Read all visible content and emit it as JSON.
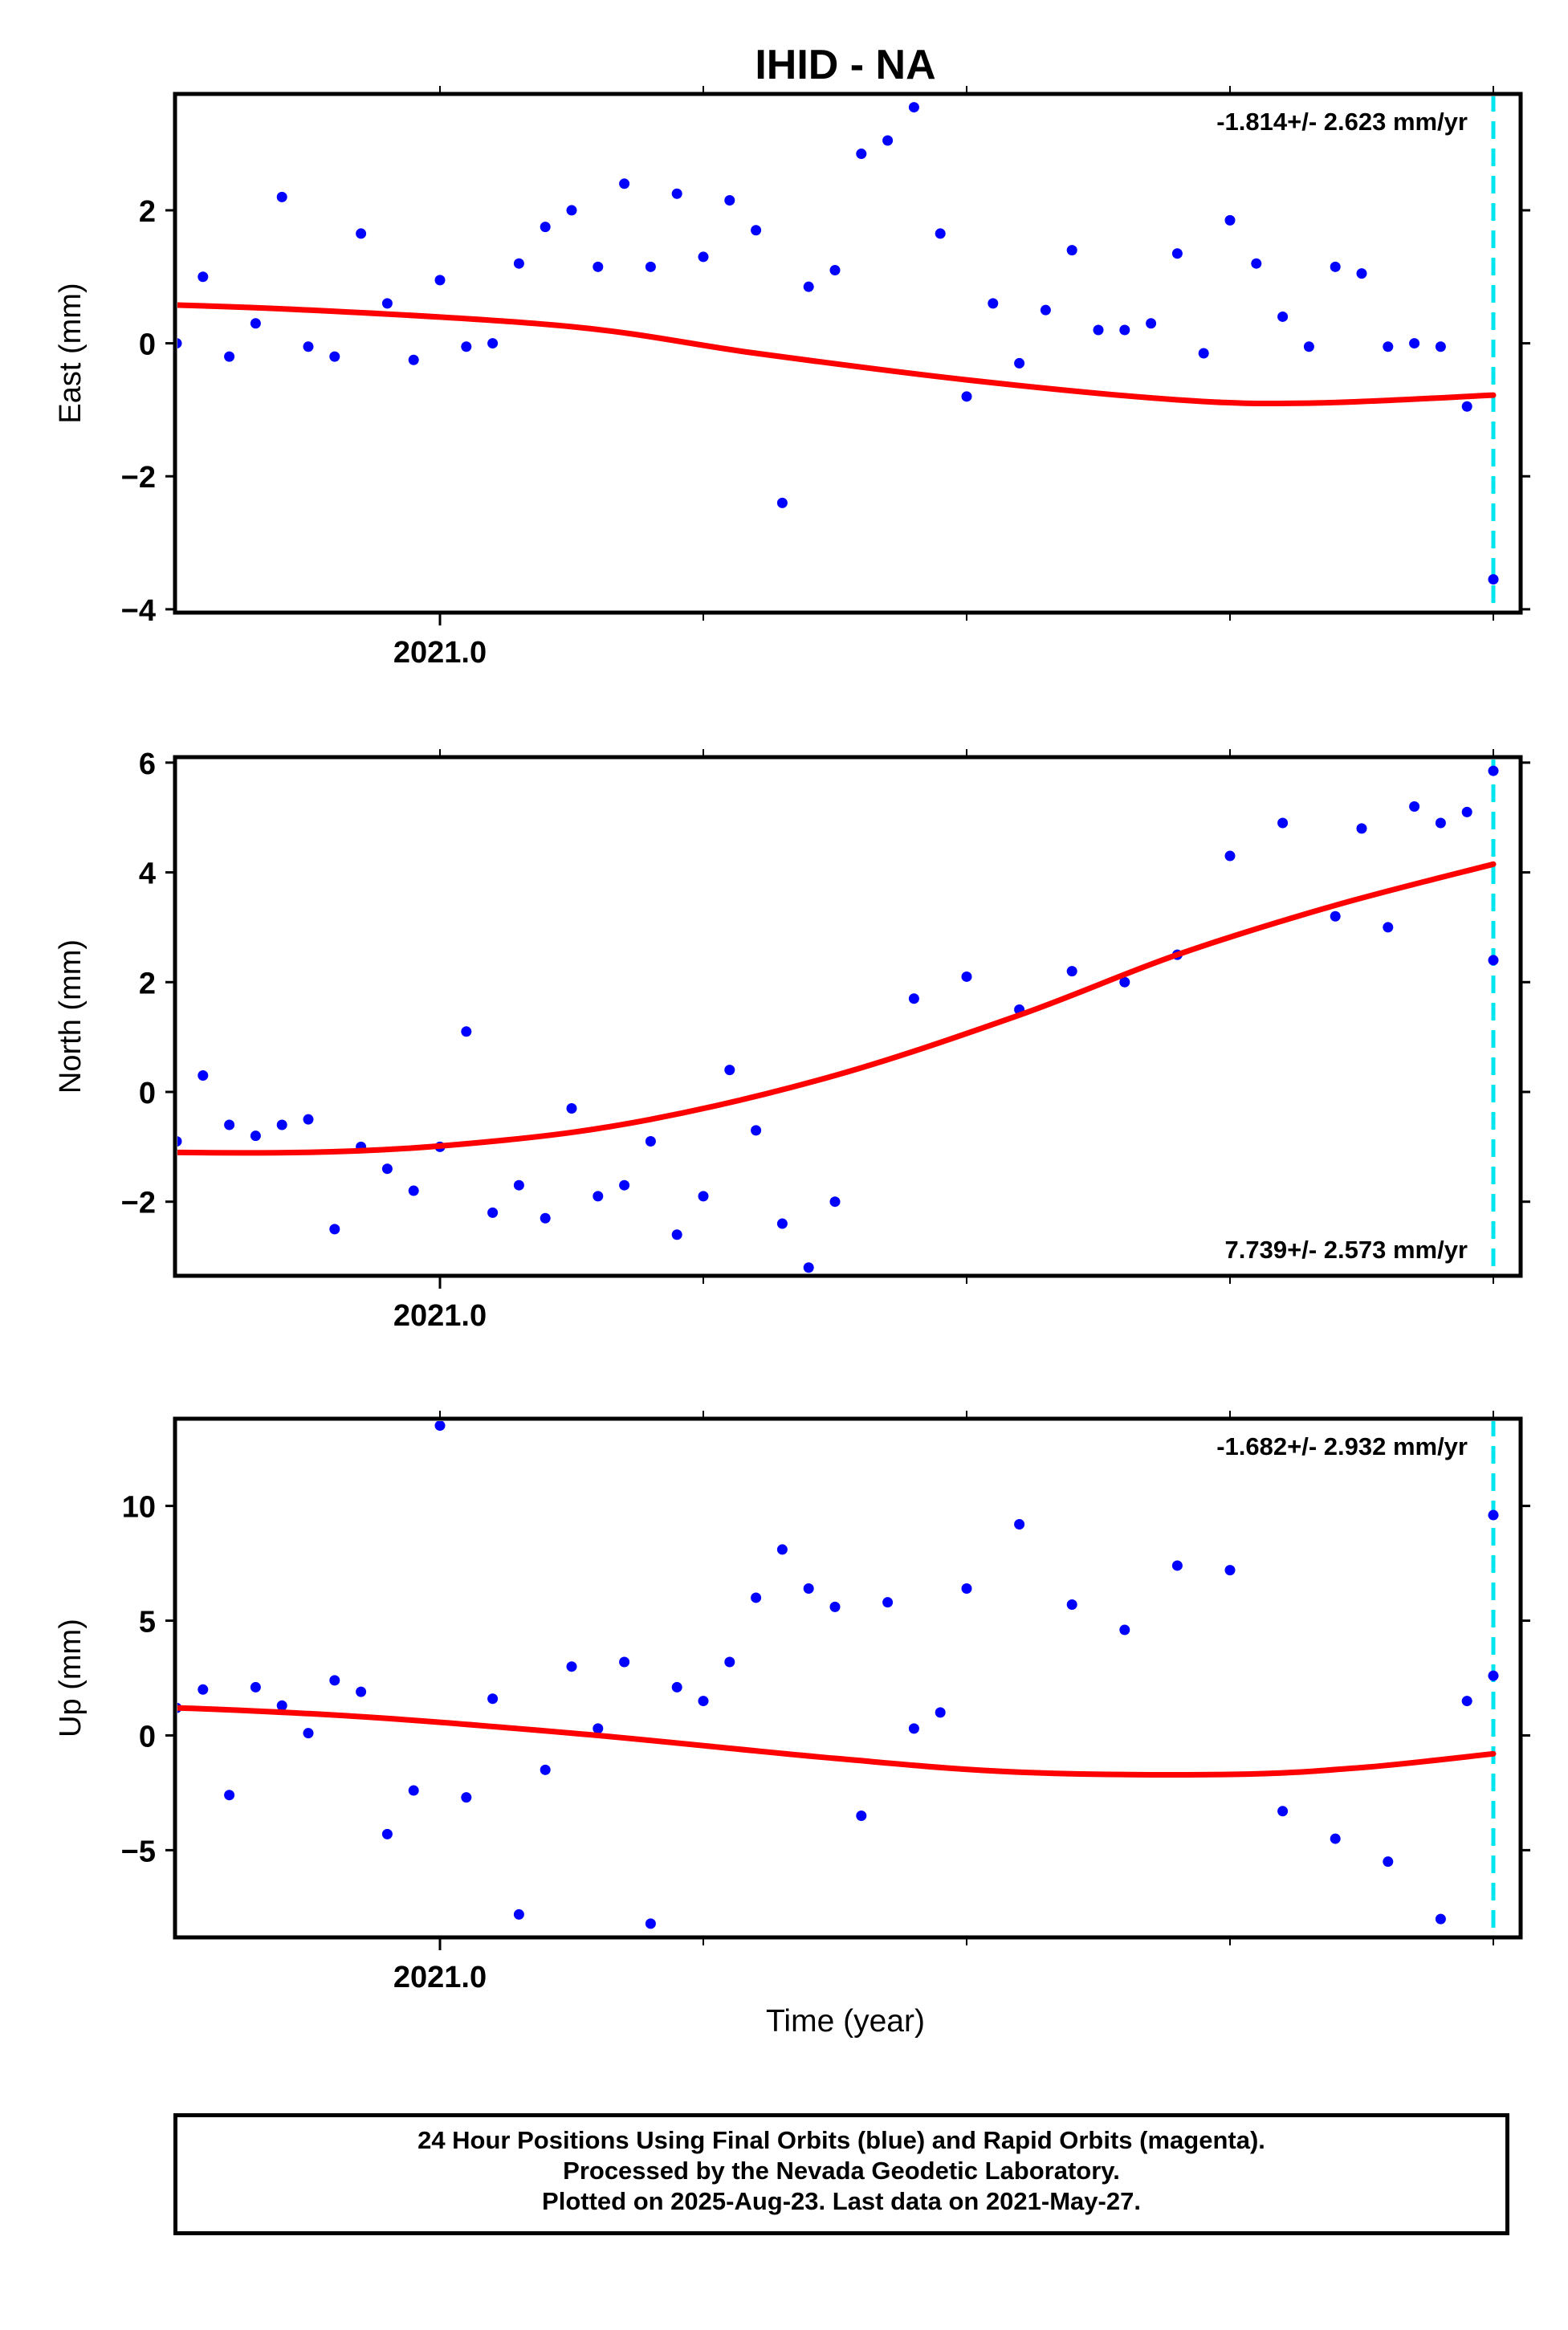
{
  "title": "IHID - NA",
  "xlabel": "Time (year)",
  "footer": {
    "line1": "24 Hour Positions Using Final Orbits (blue) and Rapid Orbits (magenta).",
    "line2": "Processed by the Nevada Geodetic Laboratory.",
    "line3": "Plotted on 2025-Aug-23. Last data on 2021-May-27."
  },
  "colors": {
    "data_points": "#0000ff",
    "fit_line": "#ff0000",
    "last_data_line": "#00e5ee",
    "frame": "#000000"
  },
  "chart_data": [
    {
      "type": "scatter",
      "ylabel": "East (mm)",
      "rate_label": "-1.814+/- 2.623 mm/yr",
      "rate_position": "top-right",
      "xlim": [
        2020.5,
        2021.45
      ],
      "ylim": [
        -4.05,
        3.75
      ],
      "yticks": [
        -4,
        -2,
        0,
        2
      ],
      "yticklabels": [
        "−4",
        "−2",
        "0",
        "2"
      ],
      "xticks": [
        2021.0
      ],
      "xticklabels": [
        "2021.0"
      ],
      "last_data_x": 2021.4,
      "trend": [
        [
          2020.55,
          0.2
        ],
        [
          2020.7,
          0.45
        ],
        [
          2020.8,
          0.6
        ],
        [
          2020.87,
          0.6
        ],
        [
          2020.95,
          0.5
        ],
        [
          2021.05,
          0.25
        ],
        [
          2021.12,
          -0.15
        ],
        [
          2021.2,
          -0.55
        ],
        [
          2021.28,
          -0.85
        ],
        [
          2021.33,
          -0.9
        ],
        [
          2021.4,
          -0.78
        ]
      ],
      "points": [
        [
          2020.54,
          1.3
        ],
        [
          2020.55,
          1.35
        ],
        [
          2020.56,
          -0.8
        ],
        [
          2020.57,
          0.5
        ],
        [
          2020.58,
          0.65
        ],
        [
          2020.59,
          1.15
        ],
        [
          2020.6,
          1.55
        ],
        [
          2020.61,
          1.1
        ],
        [
          2020.62,
          -1.4
        ],
        [
          2020.63,
          1.8
        ],
        [
          2020.64,
          0.2
        ],
        [
          2020.65,
          0.7
        ],
        [
          2020.66,
          0.2
        ],
        [
          2020.67,
          0.75
        ],
        [
          2020.68,
          -0.3
        ],
        [
          2020.69,
          0.4
        ],
        [
          2020.7,
          -0.95
        ],
        [
          2020.71,
          0.15
        ],
        [
          2020.72,
          0.15
        ],
        [
          2020.73,
          0.65
        ],
        [
          2020.74,
          0.15
        ],
        [
          2020.75,
          -0.2
        ],
        [
          2020.76,
          0.65
        ],
        [
          2020.77,
          0.5
        ],
        [
          2020.78,
          0.65
        ],
        [
          2020.81,
          -0.6
        ],
        [
          2020.82,
          -1.3
        ],
        [
          2020.83,
          -0.1
        ],
        [
          2020.84,
          -1.55
        ],
        [
          2020.85,
          -0.35
        ],
        [
          2020.86,
          -0.65
        ],
        [
          2020.87,
          0.1
        ],
        [
          2020.88,
          1.0
        ],
        [
          2020.89,
          -1.2
        ],
        [
          2020.9,
          0.0
        ],
        [
          2020.91,
          1.0
        ],
        [
          2020.92,
          -0.2
        ],
        [
          2020.93,
          0.3
        ],
        [
          2020.94,
          2.2
        ],
        [
          2020.95,
          -0.05
        ],
        [
          2020.96,
          -0.2
        ],
        [
          2020.97,
          1.65
        ],
        [
          2020.98,
          0.6
        ],
        [
          2020.99,
          -0.25
        ],
        [
          2021.0,
          0.95
        ],
        [
          2021.01,
          -0.05
        ],
        [
          2021.02,
          0.0
        ],
        [
          2021.03,
          1.2
        ],
        [
          2021.04,
          1.75
        ],
        [
          2021.05,
          2.0
        ],
        [
          2021.06,
          1.15
        ],
        [
          2021.07,
          2.4
        ],
        [
          2021.08,
          1.15
        ],
        [
          2021.09,
          2.25
        ],
        [
          2021.1,
          1.3
        ],
        [
          2021.11,
          2.15
        ],
        [
          2021.12,
          1.7
        ],
        [
          2021.13,
          -2.4
        ],
        [
          2021.14,
          0.85
        ],
        [
          2021.15,
          1.1
        ],
        [
          2021.16,
          2.85
        ],
        [
          2021.17,
          3.05
        ],
        [
          2021.18,
          3.55
        ],
        [
          2021.19,
          1.65
        ],
        [
          2021.2,
          -0.8
        ],
        [
          2021.21,
          0.6
        ],
        [
          2021.22,
          -0.3
        ],
        [
          2021.23,
          0.5
        ],
        [
          2021.24,
          1.4
        ],
        [
          2021.25,
          0.2
        ],
        [
          2021.26,
          0.2
        ],
        [
          2021.27,
          0.3
        ],
        [
          2021.28,
          1.35
        ],
        [
          2021.29,
          -0.15
        ],
        [
          2021.3,
          1.85
        ],
        [
          2021.31,
          1.2
        ],
        [
          2021.32,
          0.4
        ],
        [
          2021.33,
          -0.05
        ],
        [
          2021.34,
          1.15
        ],
        [
          2021.35,
          1.05
        ],
        [
          2021.36,
          -0.05
        ],
        [
          2021.37,
          0.0
        ],
        [
          2021.38,
          -0.05
        ],
        [
          2021.39,
          -0.95
        ],
        [
          2021.4,
          -3.55
        ]
      ]
    },
    {
      "type": "scatter",
      "ylabel": "North (mm)",
      "rate_label": "7.739+/- 2.573 mm/yr",
      "rate_position": "bottom-right",
      "xlim": [
        2020.5,
        2021.45
      ],
      "ylim": [
        -3.35,
        6.1
      ],
      "yticks": [
        -2,
        0,
        2,
        4,
        6
      ],
      "yticklabels": [
        "−2",
        "0",
        "2",
        "4",
        "6"
      ],
      "xticks": [
        2021.0
      ],
      "xticklabels": [
        "2021.0"
      ],
      "last_data_x": 2021.4,
      "trend": [
        [
          2020.55,
          -0.5
        ],
        [
          2020.65,
          -0.55
        ],
        [
          2020.75,
          -0.8
        ],
        [
          2020.85,
          -1.05
        ],
        [
          2020.95,
          -1.1
        ],
        [
          2021.02,
          -0.9
        ],
        [
          2021.08,
          -0.5
        ],
        [
          2021.15,
          0.3
        ],
        [
          2021.22,
          1.4
        ],
        [
          2021.28,
          2.5
        ],
        [
          2021.34,
          3.4
        ],
        [
          2021.4,
          4.15
        ]
      ],
      "points": [
        [
          2020.54,
          -0.8
        ],
        [
          2020.55,
          1.5
        ],
        [
          2020.56,
          0.3
        ],
        [
          2020.57,
          -0.2
        ],
        [
          2020.58,
          -0.3
        ],
        [
          2020.59,
          -1.3
        ],
        [
          2020.6,
          -0.2
        ],
        [
          2020.61,
          -2.0
        ],
        [
          2020.62,
          -0.5
        ],
        [
          2020.63,
          -0.8
        ],
        [
          2020.64,
          -1.2
        ],
        [
          2020.65,
          -0.5
        ],
        [
          2020.66,
          -2.6
        ],
        [
          2020.67,
          -1.1
        ],
        [
          2020.68,
          -0.3
        ],
        [
          2020.69,
          0.6
        ],
        [
          2020.7,
          0.2
        ],
        [
          2020.71,
          0.5
        ],
        [
          2020.72,
          0.3
        ],
        [
          2020.73,
          0.8
        ],
        [
          2020.74,
          -0.5
        ],
        [
          2020.75,
          -1.1
        ],
        [
          2020.76,
          -1.4
        ],
        [
          2020.77,
          -1.9
        ],
        [
          2020.78,
          0.6
        ],
        [
          2020.82,
          -1.4
        ],
        [
          2020.83,
          -2.1
        ],
        [
          2020.84,
          -0.6
        ],
        [
          2020.85,
          -2.1
        ],
        [
          2020.86,
          -0.2
        ],
        [
          2020.87,
          -1.1
        ],
        [
          2020.88,
          -0.6
        ],
        [
          2020.89,
          0.0
        ],
        [
          2020.9,
          -0.9
        ],
        [
          2020.91,
          0.3
        ],
        [
          2020.92,
          -0.6
        ],
        [
          2020.93,
          -0.8
        ],
        [
          2020.94,
          -0.6
        ],
        [
          2020.95,
          -0.5
        ],
        [
          2020.96,
          -2.5
        ],
        [
          2020.97,
          -1.0
        ],
        [
          2020.98,
          -1.4
        ],
        [
          2020.99,
          -1.8
        ],
        [
          2021.0,
          -1.0
        ],
        [
          2021.01,
          1.1
        ],
        [
          2021.02,
          -2.2
        ],
        [
          2021.03,
          -1.7
        ],
        [
          2021.04,
          -2.3
        ],
        [
          2021.05,
          -0.3
        ],
        [
          2021.06,
          -1.9
        ],
        [
          2021.07,
          -1.7
        ],
        [
          2021.08,
          -0.9
        ],
        [
          2021.09,
          -2.6
        ],
        [
          2021.1,
          -1.9
        ],
        [
          2021.11,
          0.4
        ],
        [
          2021.12,
          -0.7
        ],
        [
          2021.13,
          -2.4
        ],
        [
          2021.14,
          -3.2
        ],
        [
          2021.15,
          -2.0
        ],
        [
          2021.18,
          1.7
        ],
        [
          2021.2,
          2.1
        ],
        [
          2021.22,
          1.5
        ],
        [
          2021.24,
          2.2
        ],
        [
          2021.26,
          2.0
        ],
        [
          2021.28,
          2.5
        ],
        [
          2021.3,
          4.3
        ],
        [
          2021.32,
          4.9
        ],
        [
          2021.34,
          3.2
        ],
        [
          2021.35,
          4.8
        ],
        [
          2021.36,
          3.0
        ],
        [
          2021.37,
          5.2
        ],
        [
          2021.38,
          4.9
        ],
        [
          2021.39,
          5.1
        ],
        [
          2021.4,
          5.85
        ],
        [
          2021.4,
          2.4
        ]
      ]
    },
    {
      "type": "scatter",
      "ylabel": "Up (mm)",
      "rate_label": "-1.682+/- 2.932 mm/yr",
      "rate_position": "top-right",
      "xlim": [
        2020.5,
        2021.45
      ],
      "ylim": [
        -8.8,
        13.8
      ],
      "yticks": [
        -5,
        0,
        5,
        10
      ],
      "yticklabels": [
        "−5",
        "0",
        "5",
        "10"
      ],
      "xticks": [
        2021.0
      ],
      "xticklabels": [
        "2021.0"
      ],
      "last_data_x": 2021.4,
      "trend": [
        [
          2020.55,
          0.7
        ],
        [
          2020.7,
          1.15
        ],
        [
          2020.85,
          1.3
        ],
        [
          2020.95,
          0.95
        ],
        [
          2021.05,
          0.1
        ],
        [
          2021.15,
          -1.0
        ],
        [
          2021.22,
          -1.6
        ],
        [
          2021.3,
          -1.7
        ],
        [
          2021.35,
          -1.4
        ],
        [
          2021.4,
          -0.8
        ]
      ],
      "points": [
        [
          2020.54,
          -1.9
        ],
        [
          2020.55,
          5.2
        ],
        [
          2020.56,
          -1.2
        ],
        [
          2020.57,
          3.0
        ],
        [
          2020.58,
          -1.0
        ],
        [
          2020.59,
          -3.6
        ],
        [
          2020.6,
          -0.9
        ],
        [
          2020.61,
          -4.0
        ],
        [
          2020.62,
          -2.5
        ],
        [
          2020.63,
          -5.4
        ],
        [
          2020.64,
          0.8
        ],
        [
          2020.65,
          -3.0
        ],
        [
          2020.66,
          -3.4
        ],
        [
          2020.67,
          -2.6
        ],
        [
          2020.68,
          3.4
        ],
        [
          2020.69,
          5.8
        ],
        [
          2020.7,
          5.6
        ],
        [
          2020.71,
          2.4
        ],
        [
          2020.72,
          3.4
        ],
        [
          2020.73,
          0.2
        ],
        [
          2020.74,
          2.9
        ],
        [
          2020.75,
          2.6
        ],
        [
          2020.76,
          0.0
        ],
        [
          2020.77,
          0.4
        ],
        [
          2020.78,
          4.9
        ],
        [
          2020.79,
          2.6
        ],
        [
          2020.84,
          6.1
        ],
        [
          2020.85,
          0.4
        ],
        [
          2020.86,
          5.6
        ],
        [
          2020.87,
          2.3
        ],
        [
          2020.88,
          0.7
        ],
        [
          2020.89,
          4.0
        ],
        [
          2020.9,
          1.2
        ],
        [
          2020.91,
          2.0
        ],
        [
          2020.92,
          -2.6
        ],
        [
          2020.93,
          2.1
        ],
        [
          2020.94,
          1.3
        ],
        [
          2020.95,
          0.1
        ],
        [
          2020.96,
          2.4
        ],
        [
          2020.97,
          1.9
        ],
        [
          2020.98,
          -4.3
        ],
        [
          2020.99,
          -2.4
        ],
        [
          2021.0,
          13.5
        ],
        [
          2021.01,
          -2.7
        ],
        [
          2021.02,
          1.6
        ],
        [
          2021.03,
          -7.8
        ],
        [
          2021.04,
          -1.5
        ],
        [
          2021.05,
          3.0
        ],
        [
          2021.06,
          0.3
        ],
        [
          2021.07,
          3.2
        ],
        [
          2021.08,
          -8.2
        ],
        [
          2021.09,
          2.1
        ],
        [
          2021.1,
          1.5
        ],
        [
          2021.11,
          3.2
        ],
        [
          2021.12,
          6.0
        ],
        [
          2021.13,
          8.1
        ],
        [
          2021.14,
          6.4
        ],
        [
          2021.15,
          5.6
        ],
        [
          2021.16,
          -3.5
        ],
        [
          2021.17,
          5.8
        ],
        [
          2021.18,
          0.3
        ],
        [
          2021.19,
          1.0
        ],
        [
          2021.2,
          6.4
        ],
        [
          2021.22,
          9.2
        ],
        [
          2021.24,
          5.7
        ],
        [
          2021.26,
          4.6
        ],
        [
          2021.28,
          7.4
        ],
        [
          2021.3,
          7.2
        ],
        [
          2021.32,
          -3.3
        ],
        [
          2021.34,
          -4.5
        ],
        [
          2021.36,
          -5.5
        ],
        [
          2021.38,
          -8.0
        ],
        [
          2021.39,
          1.5
        ],
        [
          2021.4,
          9.6
        ],
        [
          2021.4,
          2.6
        ]
      ]
    }
  ]
}
